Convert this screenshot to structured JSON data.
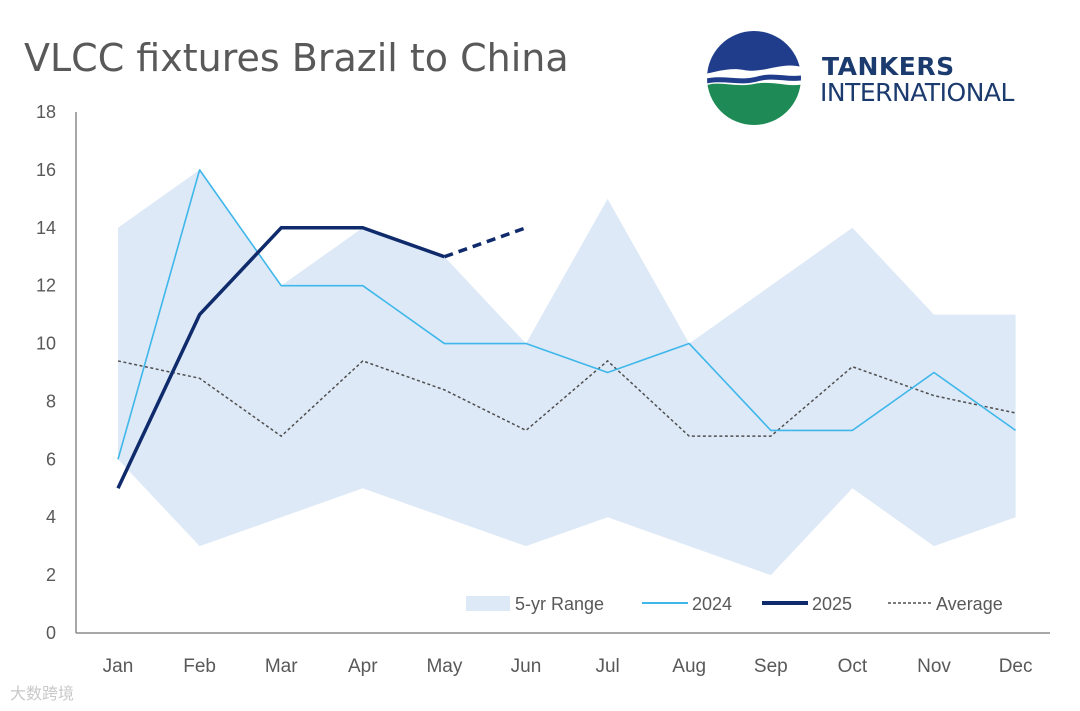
{
  "title": "VLCC fixtures Brazil to China",
  "logo": {
    "line1": "TANKERS",
    "line2": "INTERNATIONAL"
  },
  "watermark": "大数跨境",
  "colors": {
    "range": "#dde9f7",
    "series_2024": "#3fb7ea",
    "series_2025": "#0f2b6b",
    "average": "#4f4f4f",
    "axis": "#8c8c8c"
  },
  "chart_data": {
    "type": "line",
    "title": "VLCC fixtures Brazil to China",
    "categories": [
      "Jan",
      "Feb",
      "Mar",
      "Apr",
      "May",
      "Jun",
      "Jul",
      "Aug",
      "Sep",
      "Oct",
      "Nov",
      "Dec"
    ],
    "ylim": [
      0,
      18
    ],
    "yticks": [
      0,
      2,
      4,
      6,
      8,
      10,
      12,
      14,
      16,
      18
    ],
    "grid": false,
    "legend_position": "bottom-right",
    "range": {
      "name": "5-yr Range",
      "low": [
        6,
        3,
        4,
        5,
        4,
        3,
        4,
        3,
        2,
        5,
        3,
        4
      ],
      "high": [
        14,
        16,
        12,
        14,
        13,
        10,
        15,
        10,
        12,
        14,
        11,
        11
      ]
    },
    "series": [
      {
        "name": "2024",
        "values": [
          6,
          16,
          12,
          12,
          10,
          10,
          9,
          10,
          7,
          7,
          9,
          7
        ]
      },
      {
        "name": "2025",
        "values": [
          5,
          11,
          14,
          14,
          13,
          14,
          null,
          null,
          null,
          null,
          null,
          null
        ],
        "dashed_from_index": 4
      },
      {
        "name": "Average",
        "values": [
          9.4,
          8.8,
          6.8,
          9.4,
          8.4,
          7,
          9.4,
          6.8,
          6.8,
          9.2,
          8.2,
          7.6
        ]
      }
    ]
  }
}
